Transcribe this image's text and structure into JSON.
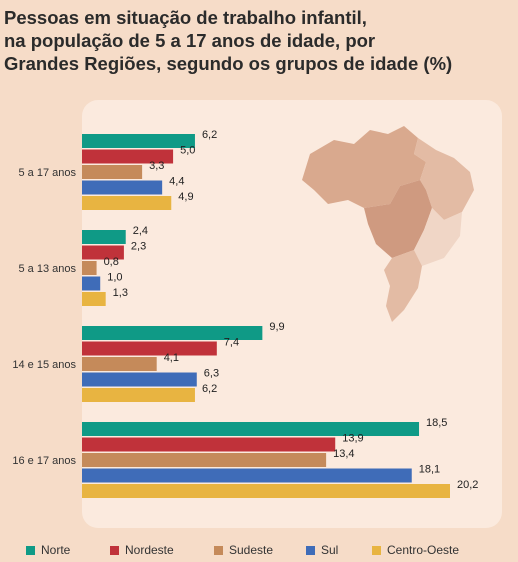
{
  "title_lines": [
    "Pessoas em situação de trabalho infantil,",
    "na população de 5 a 17 anos de idade, por",
    "Grandes Regiões, segundo os grupos de idade (%)"
  ],
  "colors": {
    "background": "#f6dcc8",
    "panel": "#fbeade",
    "map_dark": "#d9a98e",
    "map_mid": "#e3bba4",
    "map_light": "#f0d6c6",
    "map_highlight": "#cf9a80"
  },
  "chart_data": {
    "type": "bar",
    "orientation": "horizontal",
    "title": "Pessoas em situação de trabalho infantil, na população de 5 a 17 anos de idade, por Grandes Regiões, segundo os grupos de idade (%)",
    "categories": [
      "5 a 17 anos",
      "5 a 13 anos",
      "14 e 15 anos",
      "16 e 17 anos"
    ],
    "series": [
      {
        "name": "Norte",
        "color": "#0f9a86",
        "values": [
          6.2,
          2.4,
          9.9,
          18.5
        ],
        "labels": [
          "6,2",
          "2,4",
          "9,9",
          "18,5"
        ]
      },
      {
        "name": "Nordeste",
        "color": "#c0323a",
        "values": [
          5.0,
          2.3,
          7.4,
          13.9
        ],
        "labels": [
          "5,0",
          "2,3",
          "7,4",
          "13,9"
        ]
      },
      {
        "name": "Sudeste",
        "color": "#c58a5a",
        "values": [
          3.3,
          0.8,
          4.1,
          13.4
        ],
        "labels": [
          "3,3",
          "0,8",
          "4,1",
          "13,4"
        ]
      },
      {
        "name": "Sul",
        "color": "#3f6cb8",
        "values": [
          4.4,
          1.0,
          6.3,
          18.1
        ],
        "labels": [
          "4,4",
          "1,0",
          "6,3",
          "18,1"
        ]
      },
      {
        "name": "Centro-Oeste",
        "color": "#e8b441",
        "values": [
          4.9,
          1.3,
          6.2,
          20.2
        ],
        "labels": [
          "4,9",
          "1,3",
          "6,2",
          "20,2"
        ]
      }
    ],
    "xlim": [
      0,
      20.2
    ],
    "grid": false,
    "legend_position": "bottom"
  }
}
